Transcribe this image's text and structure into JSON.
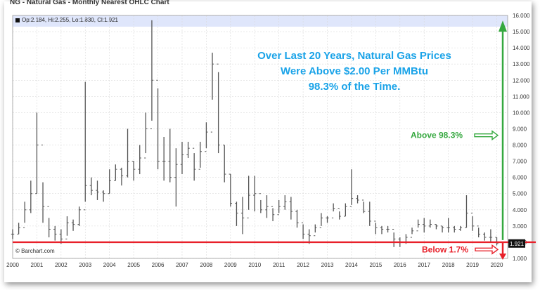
{
  "header": {
    "title": "NG - Natural Gas - Monthly Nearest OHLC Chart",
    "ohlc_readout": "Op:2.184, Hi:2.255, Lo:1.830, Cl:1.921",
    "source": "© Barchart.com"
  },
  "colors": {
    "price_bars": "#555555",
    "threshold_line": "#e8202a",
    "above_color": "#35a83f",
    "below_color": "#e8202a",
    "headline_color": "#1aa3e8",
    "last_price_tag": "#111111",
    "readout_band": "#dfe6fb"
  },
  "chart_data": {
    "type": "ohlc",
    "title": "NG - Natural Gas - Monthly Nearest OHLC Chart",
    "xlabel": "",
    "ylabel": "",
    "x_ticks": [
      "2000",
      "2001",
      "2002",
      "2003",
      "2004",
      "2005",
      "2006",
      "2007",
      "2008",
      "2009",
      "2010",
      "2011",
      "2012",
      "2013",
      "2014",
      "2015",
      "2016",
      "2017",
      "2018",
      "2019",
      "2020"
    ],
    "y_ticks": [
      "16.000",
      "15.000",
      "14.000",
      "13.000",
      "12.000",
      "11.000",
      "10.000",
      "9.000",
      "8.000",
      "7.000",
      "6.000",
      "5.000",
      "4.000",
      "3.000",
      "2.000",
      "1.000"
    ],
    "ylim": [
      1,
      16
    ],
    "y_axis_position": "right",
    "grid": true,
    "last_close_label": "1.921",
    "threshold": 2.0,
    "series": [
      {
        "x": [
          2000.0,
          2000.25,
          2000.5,
          2000.75,
          2001.0,
          2001.25,
          2001.5,
          2001.75,
          2002.0,
          2002.25,
          2002.5,
          2002.75,
          2003.0,
          2003.25,
          2003.5,
          2003.75,
          2004.0,
          2004.25,
          2004.5,
          2004.75,
          2005.0,
          2005.25,
          2005.5,
          2005.75,
          2006.0,
          2006.25,
          2006.5,
          2006.75,
          2007.0,
          2007.25,
          2007.5,
          2007.75,
          2008.0,
          2008.25,
          2008.5,
          2008.75,
          2009.0,
          2009.25,
          2009.5,
          2009.75,
          2010.0,
          2010.25,
          2010.5,
          2010.75,
          2011.0,
          2011.25,
          2011.5,
          2011.75,
          2012.0,
          2012.25,
          2012.5,
          2012.75,
          2013.0,
          2013.25,
          2013.5,
          2013.75,
          2014.0,
          2014.25,
          2014.5,
          2014.75,
          2015.0,
          2015.25,
          2015.5,
          2015.75,
          2016.0,
          2016.25,
          2016.5,
          2016.75,
          2017.0,
          2017.25,
          2017.5,
          2017.75,
          2018.0,
          2018.25,
          2018.5,
          2018.75,
          2019.0,
          2019.25,
          2019.5,
          2019.75,
          2020.0
        ],
        "high": [
          2.8,
          3.2,
          4.5,
          5.8,
          10.0,
          5.7,
          3.5,
          3.0,
          2.8,
          3.6,
          3.4,
          4.2,
          11.9,
          6.0,
          5.8,
          5.2,
          6.5,
          6.8,
          6.6,
          9.0,
          7.0,
          8.0,
          10.0,
          15.7,
          11.5,
          8.5,
          9.0,
          7.8,
          8.2,
          8.2,
          7.5,
          8.2,
          9.4,
          13.7,
          12.5,
          8.0,
          6.2,
          4.5,
          4.8,
          6.1,
          6.1,
          4.6,
          4.9,
          4.1,
          4.6,
          4.9,
          4.8,
          4.0,
          3.1,
          2.8,
          3.1,
          3.8,
          3.6,
          4.4,
          3.9,
          4.4,
          6.5,
          4.9,
          4.5,
          4.5,
          3.2,
          3.0,
          3.0,
          2.6,
          2.3,
          2.5,
          2.9,
          3.4,
          3.5,
          3.4,
          3.1,
          3.0,
          3.5,
          3.0,
          3.0,
          4.9,
          3.6,
          2.9,
          2.6,
          2.8,
          2.3
        ],
        "low": [
          2.2,
          2.5,
          3.2,
          3.8,
          5.0,
          3.2,
          2.3,
          2.1,
          1.9,
          2.4,
          2.7,
          3.0,
          4.5,
          4.9,
          4.6,
          4.5,
          5.0,
          5.8,
          5.5,
          6.0,
          5.8,
          6.2,
          7.5,
          9.5,
          6.5,
          5.8,
          5.7,
          4.2,
          6.2,
          7.2,
          5.8,
          6.6,
          7.8,
          10.8,
          7.5,
          5.7,
          4.2,
          3.0,
          2.5,
          4.0,
          3.9,
          3.8,
          3.5,
          3.3,
          3.8,
          4.0,
          3.4,
          2.9,
          2.2,
          1.9,
          2.6,
          3.0,
          3.2,
          3.9,
          3.4,
          3.6,
          4.3,
          4.4,
          3.8,
          3.0,
          2.5,
          2.5,
          2.6,
          1.7,
          1.7,
          1.9,
          2.5,
          2.9,
          2.6,
          2.9,
          2.8,
          2.6,
          2.6,
          2.6,
          2.7,
          2.9,
          2.7,
          2.3,
          2.1,
          2.0,
          1.8
        ],
        "close": [
          2.5,
          2.9,
          4.0,
          5.0,
          8.0,
          4.2,
          2.8,
          2.5,
          2.2,
          3.2,
          3.1,
          4.0,
          5.5,
          5.2,
          5.1,
          5.0,
          5.8,
          6.5,
          6.1,
          7.0,
          6.5,
          7.2,
          9.0,
          12.0,
          7.0,
          7.0,
          6.0,
          6.8,
          7.4,
          7.8,
          6.5,
          7.6,
          8.8,
          13.0,
          8.0,
          6.2,
          4.4,
          3.8,
          3.5,
          4.9,
          5.0,
          4.0,
          4.2,
          3.7,
          4.2,
          4.5,
          3.9,
          3.2,
          2.5,
          2.4,
          2.9,
          3.5,
          3.5,
          4.1,
          3.6,
          4.2,
          4.7,
          4.6,
          3.9,
          3.3,
          2.9,
          2.8,
          2.8,
          2.2,
          2.0,
          2.3,
          2.7,
          3.1,
          3.0,
          3.1,
          3.0,
          2.9,
          2.9,
          2.8,
          2.9,
          3.8,
          3.0,
          2.5,
          2.3,
          2.3,
          1.921
        ]
      }
    ]
  },
  "annotations": {
    "headline_line1": "Over Last 20 Years, Natural Gas Prices",
    "headline_line2": "Were Above $2.00 Per MMBtu",
    "headline_line3": "98.3% of the Time.",
    "above_label": "Above 98.3%",
    "below_label": "Below 1.7%"
  }
}
